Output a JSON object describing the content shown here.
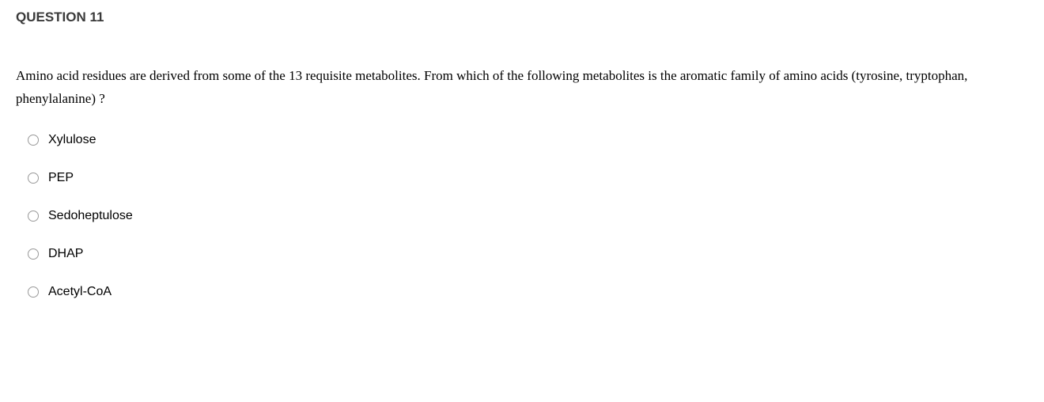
{
  "question": {
    "title": "QUESTION 11",
    "text": "Amino acid residues are derived from some of the 13 requisite metabolites. From which of the following metabolites is the aromatic family of amino acids (tyrosine, tryptophan, phenylalanine) ?",
    "options": [
      {
        "label": "Xylulose"
      },
      {
        "label": "PEP"
      },
      {
        "label": "Sedoheptulose"
      },
      {
        "label": "DHAP"
      },
      {
        "label": "Acetyl-CoA"
      }
    ],
    "colors": {
      "title_color": "#3a3a3a",
      "text_color": "#000000",
      "radio_border": "#999999",
      "background": "#ffffff"
    },
    "typography": {
      "title_fontsize": 17,
      "title_weight": "bold",
      "body_fontsize": 17,
      "body_family": "Times New Roman",
      "option_fontsize": 16,
      "option_family": "Arial"
    }
  }
}
